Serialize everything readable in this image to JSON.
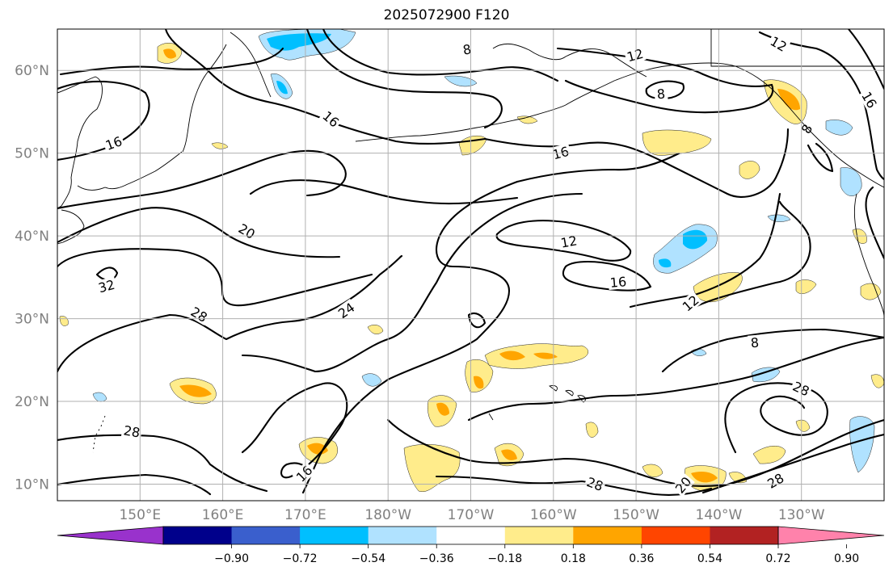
{
  "title": "2025072900 F120",
  "map": {
    "lon_range": [
      140,
      240
    ],
    "lat_range": [
      8,
      65
    ],
    "lon_ticks": [
      {
        "lon": 150,
        "label": "150°E"
      },
      {
        "lon": 160,
        "label": "160°E"
      },
      {
        "lon": 170,
        "label": "170°E"
      },
      {
        "lon": 180,
        "label": "180°W"
      },
      {
        "lon": 190,
        "label": "170°W"
      },
      {
        "lon": 200,
        "label": "160°W"
      },
      {
        "lon": 210,
        "label": "150°W"
      },
      {
        "lon": 220,
        "label": "140°W"
      },
      {
        "lon": 230,
        "label": "130°W"
      }
    ],
    "lat_ticks": [
      {
        "lat": 10,
        "label": "10°N"
      },
      {
        "lat": 20,
        "label": "20°N"
      },
      {
        "lat": 30,
        "label": "30°N"
      },
      {
        "lat": 40,
        "label": "40°N"
      },
      {
        "lat": 50,
        "label": "50°N"
      },
      {
        "lat": 60,
        "label": "60°N"
      }
    ],
    "contour_labels": [
      "8",
      "8",
      "8",
      "8",
      "12",
      "12",
      "12",
      "16",
      "16",
      "16",
      "16",
      "16",
      "16",
      "20",
      "20",
      "24",
      "28",
      "28",
      "28",
      "28",
      "28",
      "32",
      "12"
    ]
  },
  "colorbar": {
    "colors": [
      "#9932cc",
      "#00008b",
      "#3a5fcd",
      "#00bfff",
      "#b0e2ff",
      "#ffffff",
      "#ffec8b",
      "#ffa500",
      "#ff4500",
      "#b22222",
      "#ff82ab"
    ],
    "ticks": [
      "−0.90",
      "−0.72",
      "−0.54",
      "−0.36",
      "−0.18",
      "0.18",
      "0.36",
      "0.54",
      "0.72",
      "0.90"
    ]
  }
}
